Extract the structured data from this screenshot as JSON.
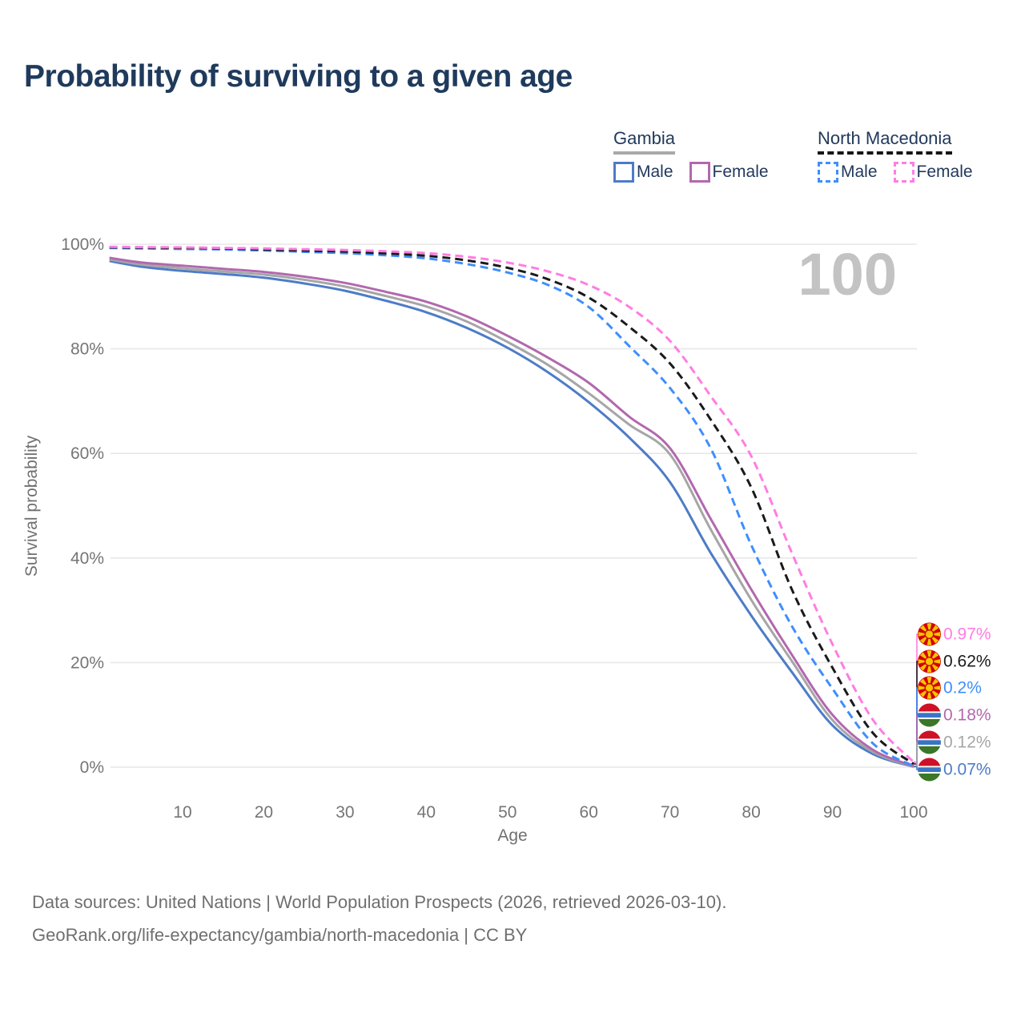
{
  "title": "Probability of surviving to a given age",
  "age_watermark": "100",
  "legend": {
    "groups": [
      {
        "label": "Gambia",
        "line_style": "solid",
        "underline_color": "#a9a9a9",
        "items": [
          {
            "label": "Male",
            "color": "#4d7cc7",
            "line_style": "solid"
          },
          {
            "label": "Female",
            "color": "#b268ae",
            "line_style": "solid"
          }
        ]
      },
      {
        "label": "North Macedonia",
        "line_style": "dashed",
        "underline_color": "#151515",
        "items": [
          {
            "label": "Male",
            "color": "#3f8efc",
            "line_style": "dashed"
          },
          {
            "label": "Female",
            "color": "#ff7de2",
            "line_style": "dashed"
          }
        ]
      }
    ]
  },
  "chart_data": {
    "type": "line",
    "title": "Probability of surviving to a given age",
    "xlabel": "Age",
    "ylabel": "Survival probability",
    "xlim": [
      1,
      100
    ],
    "ylim_percent": [
      0,
      100
    ],
    "x_ticks": [
      10,
      20,
      30,
      40,
      50,
      60,
      70,
      80,
      90,
      100
    ],
    "y_ticks_percent": [
      0,
      20,
      40,
      60,
      80,
      100
    ],
    "grid": "horizontal",
    "legend_position": "top-right",
    "series": [
      {
        "name": "North Macedonia Female",
        "country": "North Macedonia",
        "flag": "north-macedonia-flag-icon",
        "color": "#ff7de2",
        "dash": "dashed",
        "end_label": "0.97%",
        "points": [
          [
            1,
            99.5
          ],
          [
            5,
            99.45
          ],
          [
            10,
            99.4
          ],
          [
            15,
            99.3
          ],
          [
            20,
            99.2
          ],
          [
            25,
            99.05
          ],
          [
            30,
            98.9
          ],
          [
            35,
            98.65
          ],
          [
            40,
            98.3
          ],
          [
            45,
            97.6
          ],
          [
            50,
            96.5
          ],
          [
            55,
            94.8
          ],
          [
            60,
            92.2
          ],
          [
            65,
            88.0
          ],
          [
            70,
            81.5
          ],
          [
            75,
            71.0
          ],
          [
            80,
            59.5
          ],
          [
            85,
            41.0
          ],
          [
            90,
            23.5
          ],
          [
            95,
            9.0
          ],
          [
            100,
            0.97
          ]
        ]
      },
      {
        "name": "North Macedonia Both sexes",
        "country": "North Macedonia",
        "flag": "north-macedonia-flag-icon",
        "color": "#1a1a1a",
        "dash": "dashed",
        "end_label": "0.62%",
        "points": [
          [
            1,
            99.4
          ],
          [
            5,
            99.35
          ],
          [
            10,
            99.3
          ],
          [
            15,
            99.2
          ],
          [
            20,
            99.0
          ],
          [
            25,
            98.8
          ],
          [
            30,
            98.6
          ],
          [
            35,
            98.25
          ],
          [
            40,
            97.8
          ],
          [
            45,
            96.9
          ],
          [
            50,
            95.5
          ],
          [
            55,
            93.3
          ],
          [
            60,
            89.8
          ],
          [
            65,
            84.2
          ],
          [
            70,
            77.2
          ],
          [
            75,
            66.5
          ],
          [
            80,
            53.5
          ],
          [
            85,
            34.0
          ],
          [
            90,
            19.0
          ],
          [
            95,
            6.5
          ],
          [
            100,
            0.62
          ]
        ]
      },
      {
        "name": "North Macedonia Male",
        "country": "North Macedonia",
        "flag": "north-macedonia-flag-icon",
        "color": "#3f8efc",
        "dash": "dashed",
        "end_label": "0.2%",
        "points": [
          [
            1,
            99.3
          ],
          [
            5,
            99.2
          ],
          [
            10,
            99.1
          ],
          [
            15,
            99.0
          ],
          [
            20,
            98.8
          ],
          [
            25,
            98.55
          ],
          [
            30,
            98.3
          ],
          [
            35,
            97.9
          ],
          [
            40,
            97.3
          ],
          [
            45,
            96.2
          ],
          [
            50,
            94.6
          ],
          [
            55,
            92.2
          ],
          [
            60,
            88.0
          ],
          [
            65,
            80.5
          ],
          [
            70,
            72.5
          ],
          [
            75,
            61.0
          ],
          [
            80,
            42.5
          ],
          [
            85,
            27.0
          ],
          [
            90,
            15.0
          ],
          [
            95,
            4.5
          ],
          [
            100,
            0.2
          ]
        ]
      },
      {
        "name": "Gambia Female",
        "country": "Gambia",
        "flag": "gambia-flag-icon",
        "color": "#b268ae",
        "dash": "solid",
        "end_label": "0.18%",
        "points": [
          [
            1,
            97.4
          ],
          [
            5,
            96.5
          ],
          [
            10,
            95.9
          ],
          [
            15,
            95.3
          ],
          [
            20,
            94.7
          ],
          [
            25,
            93.8
          ],
          [
            30,
            92.6
          ],
          [
            35,
            90.9
          ],
          [
            40,
            89.0
          ],
          [
            45,
            86.2
          ],
          [
            50,
            82.5
          ],
          [
            55,
            78.3
          ],
          [
            60,
            73.5
          ],
          [
            65,
            67.0
          ],
          [
            70,
            61.0
          ],
          [
            75,
            47.5
          ],
          [
            80,
            34.0
          ],
          [
            85,
            21.5
          ],
          [
            90,
            10.0
          ],
          [
            95,
            3.3
          ],
          [
            100,
            0.18
          ]
        ]
      },
      {
        "name": "Gambia Both sexes",
        "country": "Gambia",
        "flag": "gambia-flag-icon",
        "color": "#a6a6a6",
        "dash": "solid",
        "end_label": "0.12%",
        "points": [
          [
            1,
            97.1
          ],
          [
            5,
            96.1
          ],
          [
            10,
            95.4
          ],
          [
            15,
            94.8
          ],
          [
            20,
            94.2
          ],
          [
            25,
            93.2
          ],
          [
            30,
            91.9
          ],
          [
            35,
            90.1
          ],
          [
            40,
            88.1
          ],
          [
            45,
            85.2
          ],
          [
            50,
            81.3
          ],
          [
            55,
            76.9
          ],
          [
            60,
            71.5
          ],
          [
            65,
            65.5
          ],
          [
            70,
            59.8
          ],
          [
            75,
            45.5
          ],
          [
            80,
            32.0
          ],
          [
            85,
            20.3
          ],
          [
            90,
            9.0
          ],
          [
            95,
            2.9
          ],
          [
            100,
            0.12
          ]
        ]
      },
      {
        "name": "Gambia Male",
        "country": "Gambia",
        "flag": "gambia-flag-icon",
        "color": "#4d7cc7",
        "dash": "solid",
        "end_label": "0.07%",
        "points": [
          [
            1,
            96.8
          ],
          [
            5,
            95.7
          ],
          [
            10,
            94.9
          ],
          [
            15,
            94.3
          ],
          [
            20,
            93.6
          ],
          [
            25,
            92.5
          ],
          [
            30,
            91.1
          ],
          [
            35,
            89.2
          ],
          [
            40,
            87.0
          ],
          [
            45,
            84.0
          ],
          [
            50,
            80.2
          ],
          [
            55,
            75.5
          ],
          [
            60,
            69.8
          ],
          [
            65,
            63.0
          ],
          [
            70,
            54.5
          ],
          [
            75,
            41.0
          ],
          [
            80,
            29.0
          ],
          [
            85,
            18.2
          ],
          [
            90,
            8.0
          ],
          [
            95,
            2.5
          ],
          [
            100,
            0.07
          ]
        ]
      }
    ]
  },
  "flag_colors": {
    "north_macedonia_red": "#d20000",
    "north_macedonia_yellow": "#f8c300",
    "gambia_red": "#ce1126",
    "gambia_blue": "#3a75c4",
    "gambia_green": "#3a7728",
    "gambia_white": "#ffffff"
  },
  "footer": {
    "line1": "Data sources: United Nations | World Population Prospects (2026, retrieved 2026-03-10).",
    "line2": "GeoRank.org/life-expectancy/gambia/north-macedonia | CC BY"
  }
}
